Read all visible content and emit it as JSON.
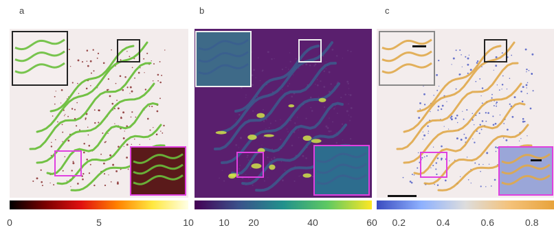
{
  "panel_labels": {
    "a": "a",
    "b": "b",
    "c": "c"
  },
  "chart_data": [
    {
      "type": "heatmap",
      "panel": "a",
      "colorbar": {
        "colormap": "hot",
        "range": [
          0,
          10
        ],
        "ticks": [
          {
            "label": "0",
            "value": 0
          },
          {
            "label": "5",
            "value": 5
          },
          {
            "label": "10",
            "value": 10
          }
        ],
        "colors": [
          "#000000",
          "#7a0000",
          "#e01010",
          "#ff8000",
          "#ffe840",
          "#ffffe6"
        ]
      },
      "overlay_color": "#6abf3c"
    },
    {
      "type": "heatmap",
      "panel": "b",
      "colorbar": {
        "colormap": "viridis",
        "range": [
          0,
          60
        ],
        "ticks": [
          {
            "label": "10",
            "value": 10
          },
          {
            "label": "20",
            "value": 20
          },
          {
            "label": "40",
            "value": 40
          },
          {
            "label": "60",
            "value": 60
          }
        ],
        "colors": [
          "#440154",
          "#3b528b",
          "#21918c",
          "#5ec962",
          "#fde725"
        ]
      },
      "background_color": "#5a1f6e"
    },
    {
      "type": "heatmap",
      "panel": "c",
      "colorbar": {
        "colormap": "coolwarm",
        "range": [
          0.1,
          0.9
        ],
        "ticks": [
          {
            "label": "0.2",
            "value": 0.2
          },
          {
            "label": "0.4",
            "value": 0.4
          },
          {
            "label": "0.6",
            "value": 0.6
          },
          {
            "label": "0.8",
            "value": 0.8
          }
        ],
        "colors": [
          "#3b4cc0",
          "#8db0fe",
          "#dddddd",
          "#f4c27a",
          "#e8a33b"
        ]
      },
      "overlay_color": "#e0a84a"
    }
  ],
  "colors": {
    "panel_background": "#f3ecec",
    "inset_frame_black": "#222222",
    "inset_frame_white": "#f0f0f0",
    "inset_frame_magenta": "#e040e0",
    "scale_bar": "#111111"
  }
}
